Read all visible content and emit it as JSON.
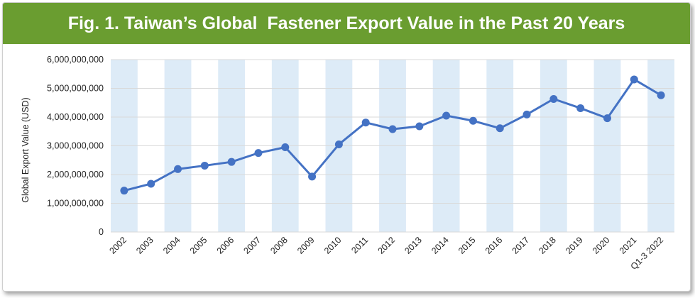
{
  "title": "Fig. 1. Taiwan’s Global  Fastener Export Value in the Past 20 Years",
  "colors": {
    "title_bar": "#6a9d30",
    "line": "#4472c4",
    "band": "#ddebf7",
    "grid": "#d9d9d9"
  },
  "chart_data": {
    "type": "line",
    "title": "Fig. 1. Taiwan’s Global  Fastener Export Value in the Past 20 Years",
    "xlabel": "",
    "ylabel": "Global Export Value (USD)",
    "ylim": [
      0,
      6000000000
    ],
    "yticks": [
      0,
      1000000000,
      2000000000,
      3000000000,
      4000000000,
      5000000000,
      6000000000
    ],
    "ytick_labels": [
      "0",
      "1,000,000,000",
      "2,000,000,000",
      "3,000,000,000",
      "4,000,000,000",
      "5,000,000,000",
      "6,000,000,000"
    ],
    "grid": true,
    "legend": "none",
    "categories": [
      "2002",
      "2003",
      "2004",
      "2005",
      "2006",
      "2007",
      "2008",
      "2009",
      "2010",
      "2011",
      "2012",
      "2013",
      "2014",
      "2015",
      "2016",
      "2017",
      "2018",
      "2019",
      "2020",
      "2021",
      "Q1-3 2022"
    ],
    "values": [
      1440000000,
      1680000000,
      2190000000,
      2310000000,
      2440000000,
      2750000000,
      2950000000,
      1930000000,
      3050000000,
      3810000000,
      3580000000,
      3680000000,
      4050000000,
      3870000000,
      3610000000,
      4090000000,
      4630000000,
      4310000000,
      3960000000,
      5310000000,
      4760000000
    ]
  }
}
